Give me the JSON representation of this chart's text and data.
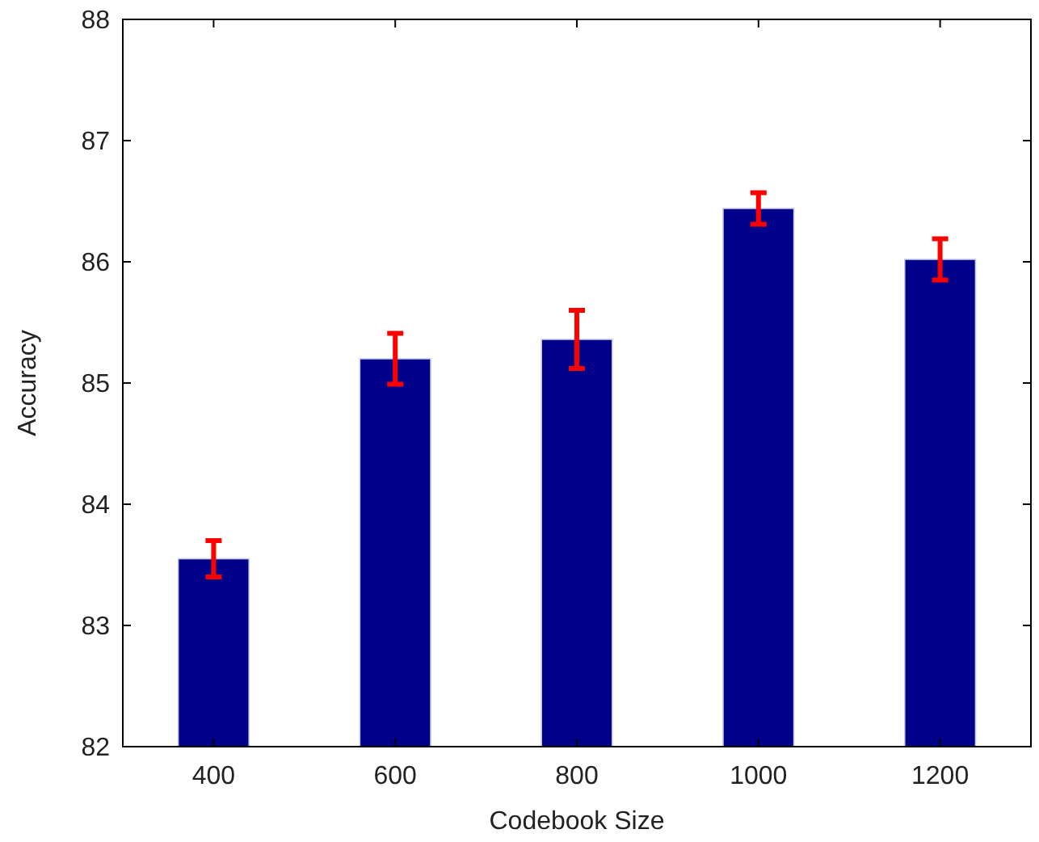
{
  "chart_data": {
    "type": "bar",
    "xlabel": "Codebook Size",
    "ylabel": "Accuracy",
    "categories": [
      "400",
      "600",
      "800",
      "1000",
      "1200"
    ],
    "values": [
      83.55,
      85.2,
      85.36,
      86.44,
      86.02
    ],
    "errors": [
      0.15,
      0.21,
      0.24,
      0.13,
      0.17
    ],
    "color": "#00008b",
    "ylim": [
      82,
      88
    ],
    "yticks": [
      82,
      83,
      84,
      85,
      86,
      87,
      88
    ],
    "grid": false
  }
}
